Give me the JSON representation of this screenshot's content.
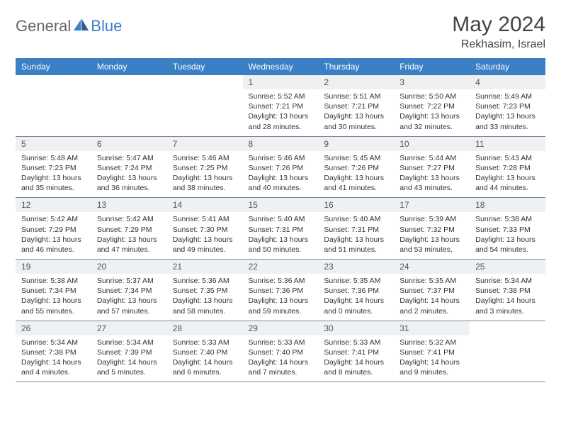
{
  "brand": {
    "part1": "General",
    "part2": "Blue"
  },
  "title": "May 2024",
  "location": "Rekhasim, Israel",
  "colors": {
    "header_bg": "#3b7fc4",
    "header_text": "#ffffff",
    "daynum_bg": "#eef0f2",
    "border": "#7a8a9a",
    "text": "#333333",
    "title_text": "#444444"
  },
  "day_headers": [
    "Sunday",
    "Monday",
    "Tuesday",
    "Wednesday",
    "Thursday",
    "Friday",
    "Saturday"
  ],
  "weeks": [
    [
      {
        "day": "",
        "sunrise": "",
        "sunset": "",
        "daylight": ""
      },
      {
        "day": "",
        "sunrise": "",
        "sunset": "",
        "daylight": ""
      },
      {
        "day": "",
        "sunrise": "",
        "sunset": "",
        "daylight": ""
      },
      {
        "day": "1",
        "sunrise": "Sunrise: 5:52 AM",
        "sunset": "Sunset: 7:21 PM",
        "daylight": "Daylight: 13 hours and 28 minutes."
      },
      {
        "day": "2",
        "sunrise": "Sunrise: 5:51 AM",
        "sunset": "Sunset: 7:21 PM",
        "daylight": "Daylight: 13 hours and 30 minutes."
      },
      {
        "day": "3",
        "sunrise": "Sunrise: 5:50 AM",
        "sunset": "Sunset: 7:22 PM",
        "daylight": "Daylight: 13 hours and 32 minutes."
      },
      {
        "day": "4",
        "sunrise": "Sunrise: 5:49 AM",
        "sunset": "Sunset: 7:23 PM",
        "daylight": "Daylight: 13 hours and 33 minutes."
      }
    ],
    [
      {
        "day": "5",
        "sunrise": "Sunrise: 5:48 AM",
        "sunset": "Sunset: 7:23 PM",
        "daylight": "Daylight: 13 hours and 35 minutes."
      },
      {
        "day": "6",
        "sunrise": "Sunrise: 5:47 AM",
        "sunset": "Sunset: 7:24 PM",
        "daylight": "Daylight: 13 hours and 36 minutes."
      },
      {
        "day": "7",
        "sunrise": "Sunrise: 5:46 AM",
        "sunset": "Sunset: 7:25 PM",
        "daylight": "Daylight: 13 hours and 38 minutes."
      },
      {
        "day": "8",
        "sunrise": "Sunrise: 5:46 AM",
        "sunset": "Sunset: 7:26 PM",
        "daylight": "Daylight: 13 hours and 40 minutes."
      },
      {
        "day": "9",
        "sunrise": "Sunrise: 5:45 AM",
        "sunset": "Sunset: 7:26 PM",
        "daylight": "Daylight: 13 hours and 41 minutes."
      },
      {
        "day": "10",
        "sunrise": "Sunrise: 5:44 AM",
        "sunset": "Sunset: 7:27 PM",
        "daylight": "Daylight: 13 hours and 43 minutes."
      },
      {
        "day": "11",
        "sunrise": "Sunrise: 5:43 AM",
        "sunset": "Sunset: 7:28 PM",
        "daylight": "Daylight: 13 hours and 44 minutes."
      }
    ],
    [
      {
        "day": "12",
        "sunrise": "Sunrise: 5:42 AM",
        "sunset": "Sunset: 7:29 PM",
        "daylight": "Daylight: 13 hours and 46 minutes."
      },
      {
        "day": "13",
        "sunrise": "Sunrise: 5:42 AM",
        "sunset": "Sunset: 7:29 PM",
        "daylight": "Daylight: 13 hours and 47 minutes."
      },
      {
        "day": "14",
        "sunrise": "Sunrise: 5:41 AM",
        "sunset": "Sunset: 7:30 PM",
        "daylight": "Daylight: 13 hours and 49 minutes."
      },
      {
        "day": "15",
        "sunrise": "Sunrise: 5:40 AM",
        "sunset": "Sunset: 7:31 PM",
        "daylight": "Daylight: 13 hours and 50 minutes."
      },
      {
        "day": "16",
        "sunrise": "Sunrise: 5:40 AM",
        "sunset": "Sunset: 7:31 PM",
        "daylight": "Daylight: 13 hours and 51 minutes."
      },
      {
        "day": "17",
        "sunrise": "Sunrise: 5:39 AM",
        "sunset": "Sunset: 7:32 PM",
        "daylight": "Daylight: 13 hours and 53 minutes."
      },
      {
        "day": "18",
        "sunrise": "Sunrise: 5:38 AM",
        "sunset": "Sunset: 7:33 PM",
        "daylight": "Daylight: 13 hours and 54 minutes."
      }
    ],
    [
      {
        "day": "19",
        "sunrise": "Sunrise: 5:38 AM",
        "sunset": "Sunset: 7:34 PM",
        "daylight": "Daylight: 13 hours and 55 minutes."
      },
      {
        "day": "20",
        "sunrise": "Sunrise: 5:37 AM",
        "sunset": "Sunset: 7:34 PM",
        "daylight": "Daylight: 13 hours and 57 minutes."
      },
      {
        "day": "21",
        "sunrise": "Sunrise: 5:36 AM",
        "sunset": "Sunset: 7:35 PM",
        "daylight": "Daylight: 13 hours and 58 minutes."
      },
      {
        "day": "22",
        "sunrise": "Sunrise: 5:36 AM",
        "sunset": "Sunset: 7:36 PM",
        "daylight": "Daylight: 13 hours and 59 minutes."
      },
      {
        "day": "23",
        "sunrise": "Sunrise: 5:35 AM",
        "sunset": "Sunset: 7:36 PM",
        "daylight": "Daylight: 14 hours and 0 minutes."
      },
      {
        "day": "24",
        "sunrise": "Sunrise: 5:35 AM",
        "sunset": "Sunset: 7:37 PM",
        "daylight": "Daylight: 14 hours and 2 minutes."
      },
      {
        "day": "25",
        "sunrise": "Sunrise: 5:34 AM",
        "sunset": "Sunset: 7:38 PM",
        "daylight": "Daylight: 14 hours and 3 minutes."
      }
    ],
    [
      {
        "day": "26",
        "sunrise": "Sunrise: 5:34 AM",
        "sunset": "Sunset: 7:38 PM",
        "daylight": "Daylight: 14 hours and 4 minutes."
      },
      {
        "day": "27",
        "sunrise": "Sunrise: 5:34 AM",
        "sunset": "Sunset: 7:39 PM",
        "daylight": "Daylight: 14 hours and 5 minutes."
      },
      {
        "day": "28",
        "sunrise": "Sunrise: 5:33 AM",
        "sunset": "Sunset: 7:40 PM",
        "daylight": "Daylight: 14 hours and 6 minutes."
      },
      {
        "day": "29",
        "sunrise": "Sunrise: 5:33 AM",
        "sunset": "Sunset: 7:40 PM",
        "daylight": "Daylight: 14 hours and 7 minutes."
      },
      {
        "day": "30",
        "sunrise": "Sunrise: 5:33 AM",
        "sunset": "Sunset: 7:41 PM",
        "daylight": "Daylight: 14 hours and 8 minutes."
      },
      {
        "day": "31",
        "sunrise": "Sunrise: 5:32 AM",
        "sunset": "Sunset: 7:41 PM",
        "daylight": "Daylight: 14 hours and 9 minutes."
      },
      {
        "day": "",
        "sunrise": "",
        "sunset": "",
        "daylight": ""
      }
    ]
  ]
}
